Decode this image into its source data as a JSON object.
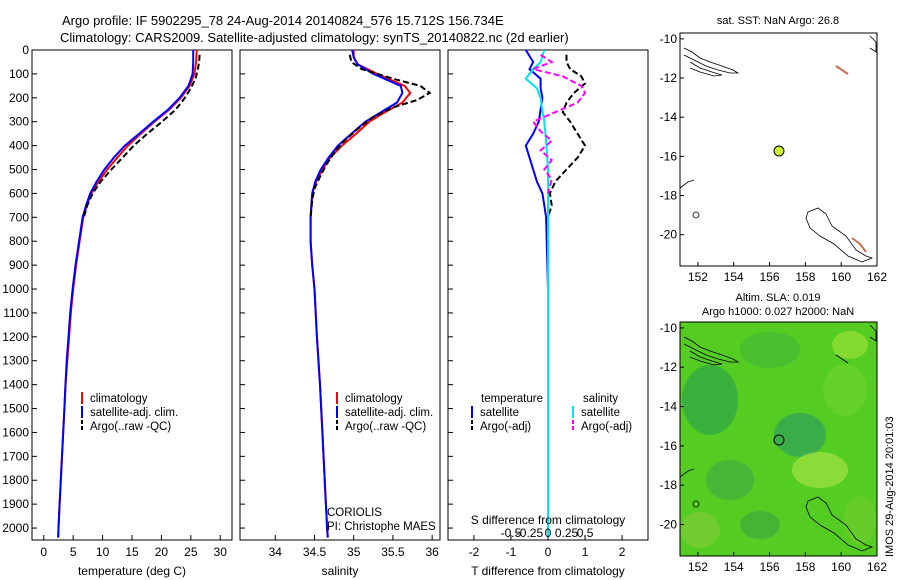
{
  "header": {
    "title": "Argo profile: IF 5902295_78 24-Aug-2014 20140824_576 15.712S 156.734E",
    "subtitle": "Climatology: CARS2009. Satellite-adjusted climatology: synTS_20140822.nc (2d earlier)"
  },
  "side_text": "IMOS 29-Aug-2014 20:01:03",
  "colors": {
    "climatology": "#ff0000",
    "satellite": "#0000ff",
    "argo": "#000000",
    "sal_satellite": "#00e5e5",
    "sal_argo": "#ff00ff"
  },
  "y_axis": {
    "ticks": [
      "0",
      "100",
      "200",
      "300",
      "400",
      "500",
      "600",
      "700",
      "800",
      "900",
      "1000",
      "1100",
      "1200",
      "1300",
      "1400",
      "1500",
      "1600",
      "1700",
      "1800",
      "1900",
      "2000"
    ],
    "ylim": [
      2050,
      0
    ]
  },
  "panels": {
    "temperature": {
      "xlabel": "temperature (deg C)",
      "xticks": [
        "0",
        "5",
        "10",
        "15",
        "20",
        "25",
        "30"
      ],
      "xlim": [
        -2,
        32
      ],
      "legend": [
        "climatology",
        "satellite-adj. clim.",
        "Argo(..raw -QC)"
      ]
    },
    "salinity": {
      "xlabel": "salinity",
      "xticks": [
        "34",
        "34.5",
        "35",
        "35.5",
        "36"
      ],
      "xlim": [
        33.55,
        36.1
      ],
      "legend": [
        "climatology",
        "satellite-adj. clim.",
        "Argo(..raw -QC)"
      ],
      "source_line1": "CORIOLIS",
      "source_line2": "PI: Christophe MAES"
    },
    "difference": {
      "xlabel": "T difference from climatology",
      "top_label": "S difference from climatology",
      "xticks": [
        "-2",
        "-1",
        "0",
        "1",
        "2"
      ],
      "xlim": [
        -2.7,
        2.7
      ],
      "sticks": [
        "-0.5",
        "-0.25",
        "0",
        "0.25",
        "0.5"
      ],
      "legend_titles": [
        "temperature",
        "salinity"
      ],
      "legend_t": [
        "satellite",
        "Argo(-adj)"
      ],
      "legend_s": [
        "satellite",
        "Argo(-adj)"
      ]
    },
    "map_sst": {
      "title": "sat. SST: NaN Argo: 26.8",
      "xticks": [
        "152",
        "154",
        "156",
        "158",
        "160",
        "162"
      ],
      "yticks": [
        "-10",
        "-12",
        "-14",
        "-16",
        "-18",
        "-20"
      ]
    },
    "map_sla": {
      "title1": "Altim. SLA: 0.019",
      "title2": "Argo h1000: 0.027 h2000: NaN",
      "xticks": [
        "152",
        "154",
        "156",
        "158",
        "160",
        "162"
      ],
      "yticks": [
        "-10",
        "-12",
        "-14",
        "-16",
        "-18",
        "-20"
      ]
    }
  },
  "chart_data": [
    {
      "type": "line",
      "title": "",
      "xlabel": "temperature (deg C)",
      "ylabel": "",
      "xlim": [
        -2,
        32
      ],
      "ylim": [
        2050,
        0
      ],
      "series": [
        {
          "name": "climatology",
          "points": [
            [
              26,
              0
            ],
            [
              25.9,
              50
            ],
            [
              25.6,
              100
            ],
            [
              24.8,
              150
            ],
            [
              23.3,
              200
            ],
            [
              21.3,
              250
            ],
            [
              18.8,
              300
            ],
            [
              16.5,
              350
            ],
            [
              14.3,
              400
            ],
            [
              12.5,
              450
            ],
            [
              10.8,
              500
            ],
            [
              9.3,
              550
            ],
            [
              8.1,
              600
            ],
            [
              7.3,
              650
            ],
            [
              6.7,
              700
            ],
            [
              6.1,
              800
            ],
            [
              5.5,
              900
            ],
            [
              5.0,
              1000
            ],
            [
              4.6,
              1100
            ],
            [
              4.3,
              1200
            ],
            [
              4.0,
              1300
            ],
            [
              3.7,
              1400
            ],
            [
              3.5,
              1500
            ],
            [
              3.3,
              1600
            ],
            [
              3.1,
              1700
            ],
            [
              2.9,
              1800
            ],
            [
              2.7,
              1900
            ],
            [
              2.5,
              2000
            ],
            [
              2.45,
              2040
            ]
          ]
        },
        {
          "name": "satellite-adj. clim.",
          "points": [
            [
              25.4,
              0
            ],
            [
              25.4,
              50
            ],
            [
              25.3,
              100
            ],
            [
              24.6,
              150
            ],
            [
              23.1,
              200
            ],
            [
              21.1,
              250
            ],
            [
              18.6,
              300
            ],
            [
              16.2,
              350
            ],
            [
              13.8,
              400
            ],
            [
              11.9,
              450
            ],
            [
              10.3,
              500
            ],
            [
              9.0,
              550
            ],
            [
              7.9,
              600
            ],
            [
              7.2,
              650
            ],
            [
              6.6,
              700
            ],
            [
              6.0,
              800
            ],
            [
              5.4,
              900
            ],
            [
              4.9,
              1000
            ],
            [
              4.5,
              1100
            ],
            [
              4.2,
              1200
            ],
            [
              3.9,
              1300
            ],
            [
              3.7,
              1400
            ],
            [
              3.5,
              1500
            ],
            [
              3.3,
              1600
            ],
            [
              3.1,
              1700
            ],
            [
              2.9,
              1800
            ],
            [
              2.7,
              1900
            ],
            [
              2.5,
              2000
            ],
            [
              2.45,
              2040
            ]
          ]
        },
        {
          "name": "Argo(..raw -QC)",
          "points": [
            [
              26.5,
              20
            ],
            [
              26.4,
              50
            ],
            [
              26.2,
              80
            ],
            [
              25.8,
              120
            ],
            [
              25.0,
              160
            ],
            [
              24.0,
              200
            ],
            [
              22.4,
              250
            ],
            [
              20.1,
              300
            ],
            [
              17.6,
              350
            ],
            [
              15.3,
              400
            ],
            [
              13.4,
              450
            ],
            [
              11.5,
              500
            ],
            [
              9.7,
              550
            ],
            [
              8.3,
              600
            ],
            [
              7.4,
              650
            ],
            [
              6.8,
              700
            ]
          ]
        }
      ]
    },
    {
      "type": "line",
      "title": "",
      "xlabel": "salinity",
      "ylabel": "",
      "xlim": [
        33.55,
        36.1
      ],
      "ylim": [
        2050,
        0
      ],
      "series": [
        {
          "name": "climatology",
          "points": [
            [
              35.0,
              0
            ],
            [
              35.0,
              30
            ],
            [
              35.05,
              60
            ],
            [
              35.3,
              100
            ],
            [
              35.65,
              150
            ],
            [
              35.72,
              180
            ],
            [
              35.62,
              220
            ],
            [
              35.4,
              260
            ],
            [
              35.2,
              300
            ],
            [
              35.03,
              350
            ],
            [
              34.85,
              400
            ],
            [
              34.7,
              450
            ],
            [
              34.6,
              500
            ],
            [
              34.52,
              550
            ],
            [
              34.47,
              600
            ],
            [
              34.45,
              700
            ],
            [
              34.45,
              800
            ],
            [
              34.47,
              900
            ],
            [
              34.5,
              1000
            ],
            [
              34.53,
              1200
            ],
            [
              34.57,
              1400
            ],
            [
              34.6,
              1600
            ],
            [
              34.63,
              1800
            ],
            [
              34.66,
              2000
            ],
            [
              34.67,
              2040
            ]
          ]
        },
        {
          "name": "satellite-adj. clim.",
          "points": [
            [
              34.98,
              0
            ],
            [
              35.0,
              30
            ],
            [
              35.05,
              60
            ],
            [
              35.25,
              100
            ],
            [
              35.6,
              150
            ],
            [
              35.62,
              180
            ],
            [
              35.55,
              220
            ],
            [
              35.35,
              260
            ],
            [
              35.15,
              300
            ],
            [
              34.97,
              350
            ],
            [
              34.8,
              400
            ],
            [
              34.68,
              450
            ],
            [
              34.58,
              500
            ],
            [
              34.51,
              550
            ],
            [
              34.47,
              600
            ],
            [
              34.45,
              700
            ],
            [
              34.45,
              800
            ],
            [
              34.47,
              900
            ],
            [
              34.5,
              1000
            ],
            [
              34.53,
              1200
            ],
            [
              34.57,
              1400
            ],
            [
              34.6,
              1600
            ],
            [
              34.63,
              1800
            ],
            [
              34.66,
              2000
            ],
            [
              34.67,
              2040
            ]
          ]
        },
        {
          "name": "Argo(..raw -QC)",
          "points": [
            [
              34.95,
              20
            ],
            [
              34.97,
              50
            ],
            [
              35.1,
              80
            ],
            [
              35.5,
              120
            ],
            [
              35.85,
              150
            ],
            [
              35.97,
              180
            ],
            [
              35.8,
              210
            ],
            [
              35.5,
              240
            ],
            [
              35.25,
              280
            ],
            [
              35.05,
              330
            ],
            [
              34.88,
              380
            ],
            [
              34.75,
              430
            ],
            [
              34.65,
              480
            ],
            [
              34.57,
              530
            ],
            [
              34.5,
              580
            ],
            [
              34.47,
              630
            ],
            [
              34.45,
              700
            ]
          ]
        }
      ]
    },
    {
      "type": "line",
      "title": "",
      "xlabel": "T difference from climatology",
      "ylabel": "",
      "xlim": [
        -2.7,
        2.7
      ],
      "ylim": [
        2050,
        0
      ],
      "series": [
        {
          "name": "temperature satellite",
          "points": [
            [
              -0.6,
              0
            ],
            [
              -0.4,
              50
            ],
            [
              -0.5,
              80
            ],
            [
              -0.2,
              120
            ],
            [
              -0.2,
              160
            ],
            [
              -0.15,
              200
            ],
            [
              -0.2,
              250
            ],
            [
              -0.25,
              300
            ],
            [
              -0.4,
              350
            ],
            [
              -0.6,
              400
            ],
            [
              -0.5,
              450
            ],
            [
              -0.4,
              500
            ],
            [
              -0.3,
              550
            ],
            [
              -0.15,
              600
            ],
            [
              -0.1,
              650
            ],
            [
              -0.05,
              700
            ],
            [
              0,
              1000
            ],
            [
              0,
              1500
            ],
            [
              0,
              2000
            ],
            [
              0,
              2040
            ]
          ]
        },
        {
          "name": "temperature Argo(-adj)",
          "points": [
            [
              0.5,
              20
            ],
            [
              0.5,
              50
            ],
            [
              0.6,
              80
            ],
            [
              0.9,
              110
            ],
            [
              1.0,
              140
            ],
            [
              0.7,
              180
            ],
            [
              0.5,
              220
            ],
            [
              0.4,
              260
            ],
            [
              0.6,
              300
            ],
            [
              0.8,
              350
            ],
            [
              1.0,
              400
            ],
            [
              0.8,
              450
            ],
            [
              0.5,
              500
            ],
            [
              0.2,
              550
            ],
            [
              0.05,
              600
            ],
            [
              0.1,
              650
            ],
            [
              0,
              700
            ]
          ]
        },
        {
          "name": "salinity satellite",
          "points": [
            [
              -0.05,
              0
            ],
            [
              -0.1,
              50
            ],
            [
              -0.2,
              80
            ],
            [
              -0.3,
              120
            ],
            [
              -0.15,
              160
            ],
            [
              -0.1,
              200
            ],
            [
              -0.08,
              250
            ],
            [
              -0.05,
              300
            ],
            [
              -0.02,
              400
            ],
            [
              0,
              500
            ],
            [
              0,
              600
            ],
            [
              0,
              1000
            ],
            [
              0,
              1500
            ],
            [
              0,
              2000
            ],
            [
              0,
              2040
            ]
          ]
        },
        {
          "name": "salinity Argo(-adj)",
          "points": [
            [
              -0.1,
              20
            ],
            [
              0.05,
              50
            ],
            [
              -0.2,
              80
            ],
            [
              0.2,
              110
            ],
            [
              0.45,
              150
            ],
            [
              0.5,
              180
            ],
            [
              0.4,
              220
            ],
            [
              0.1,
              260
            ],
            [
              -0.2,
              300
            ],
            [
              -0.1,
              340
            ],
            [
              0.05,
              380
            ],
            [
              -0.1,
              420
            ],
            [
              0.05,
              460
            ],
            [
              -0.05,
              500
            ],
            [
              0.05,
              540
            ],
            [
              0,
              600
            ]
          ]
        }
      ]
    }
  ]
}
